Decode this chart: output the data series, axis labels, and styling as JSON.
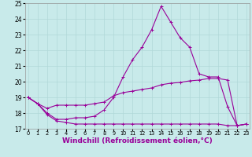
{
  "xlabel": "Windchill (Refroidissement éolien,°C)",
  "bg_color": "#c8eaea",
  "line_color": "#990099",
  "grid_color": "#b0d8d8",
  "xmin": 0,
  "xmax": 23,
  "ymin": 17,
  "ymax": 25,
  "yticks": [
    17,
    18,
    19,
    20,
    21,
    22,
    23,
    24,
    25
  ],
  "xticks": [
    0,
    1,
    2,
    3,
    4,
    5,
    6,
    7,
    8,
    9,
    10,
    11,
    12,
    13,
    14,
    15,
    16,
    17,
    18,
    19,
    20,
    21,
    22,
    23
  ],
  "line1_y": [
    19.0,
    18.6,
    18.0,
    17.6,
    17.6,
    17.7,
    17.7,
    17.8,
    18.2,
    19.0,
    20.3,
    21.4,
    22.2,
    23.3,
    24.8,
    23.8,
    22.8,
    22.2,
    20.5,
    20.3,
    20.3,
    18.4,
    17.2,
    17.3
  ],
  "line2_y": [
    19.0,
    18.6,
    18.3,
    18.5,
    18.5,
    18.5,
    18.5,
    18.6,
    18.7,
    19.1,
    19.3,
    19.4,
    19.5,
    19.6,
    19.8,
    19.9,
    19.95,
    20.05,
    20.1,
    20.2,
    20.2,
    20.1,
    17.2,
    17.3
  ],
  "line3_y": [
    19.0,
    18.6,
    17.9,
    17.5,
    17.4,
    17.3,
    17.3,
    17.3,
    17.3,
    17.3,
    17.3,
    17.3,
    17.3,
    17.3,
    17.3,
    17.3,
    17.3,
    17.3,
    17.3,
    17.3,
    17.3,
    17.2,
    17.2,
    17.3
  ],
  "xlabel_fontsize": 6.5,
  "xtick_fontsize": 4.8,
  "ytick_fontsize": 5.5,
  "line_width": 0.8,
  "marker_size": 2.5
}
